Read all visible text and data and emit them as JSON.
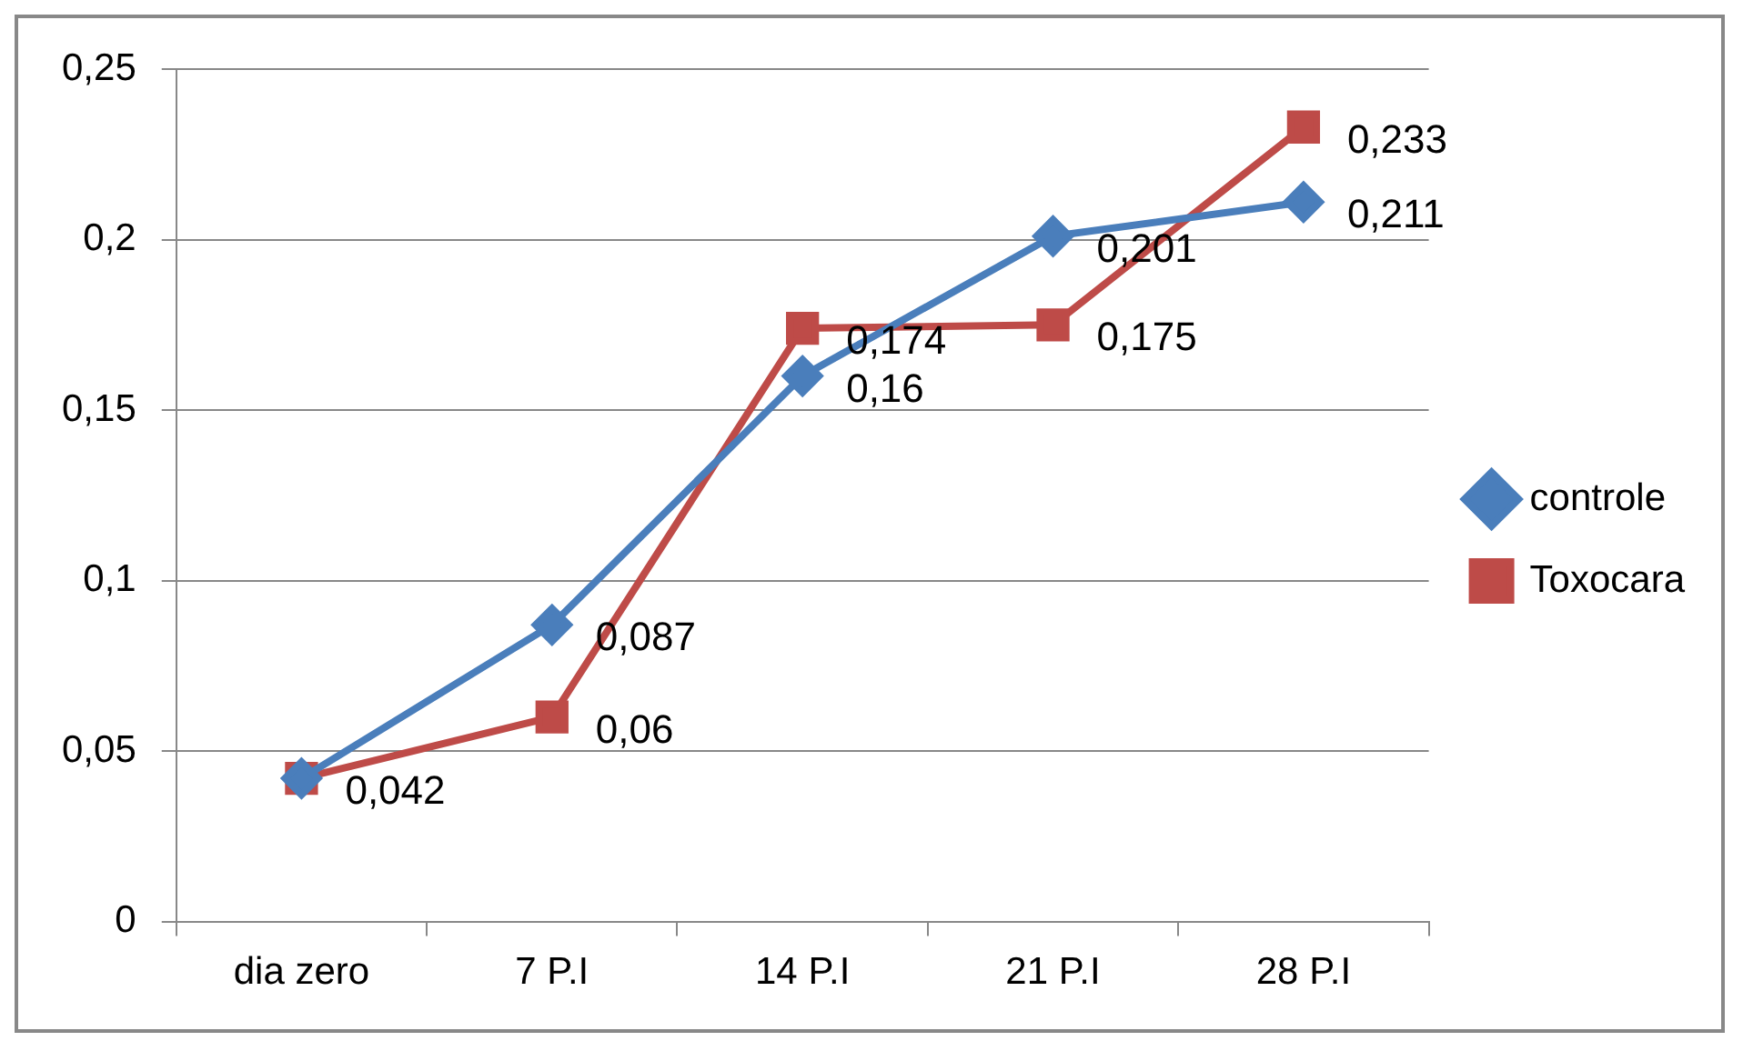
{
  "chart_data": {
    "type": "line",
    "categories": [
      "dia zero",
      "7 P.I",
      "14 P.I",
      "21 P.I",
      "28 P.I"
    ],
    "series": [
      {
        "name": "controle",
        "color": "#4a7ebb",
        "marker": "diamond",
        "values": [
          0.042,
          0.087,
          0.16,
          0.201,
          0.211
        ],
        "value_labels": [
          null,
          "0,087",
          "0,16",
          "0,201",
          "0,211"
        ]
      },
      {
        "name": "Toxocara",
        "color": "#be4b48",
        "marker": "square",
        "values": [
          0.042,
          0.06,
          0.174,
          0.175,
          0.233
        ],
        "value_labels": [
          "0,042",
          "0,06",
          "0,174",
          "0,175",
          "0,233"
        ]
      }
    ],
    "ylim": [
      0,
      0.25
    ],
    "yticks": [
      {
        "value": 0,
        "label": "0"
      },
      {
        "value": 0.05,
        "label": "0,05"
      },
      {
        "value": 0.1,
        "label": "0,1"
      },
      {
        "value": 0.15,
        "label": "0,15"
      },
      {
        "value": 0.2,
        "label": "0,2"
      },
      {
        "value": 0.25,
        "label": "0,25"
      }
    ],
    "grid": "y",
    "legend": "right",
    "line_style": "solid"
  }
}
